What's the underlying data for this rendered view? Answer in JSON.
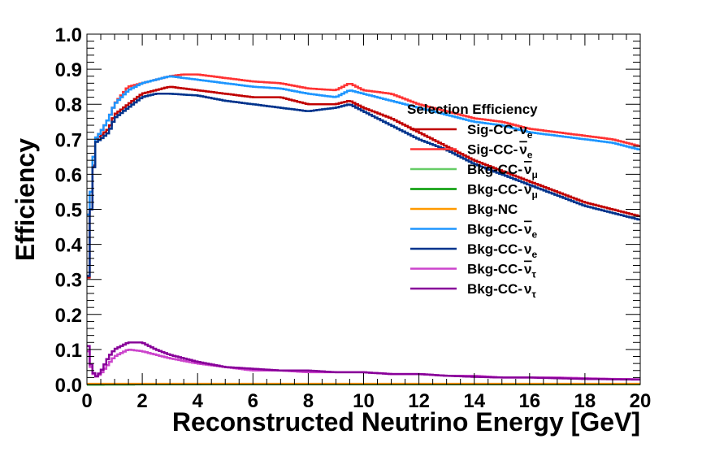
{
  "chart_data": {
    "type": "line",
    "title": "",
    "xlabel": "Reconstructed Neutrino Energy [GeV]",
    "ylabel": "Efficiency",
    "xlim": [
      0,
      20
    ],
    "ylim": [
      0,
      1.0
    ],
    "grid": false,
    "legend_title": "Selection Efficiency",
    "legend_position": "center-right",
    "x_ticks": [
      "0",
      "2",
      "4",
      "6",
      "8",
      "10",
      "12",
      "14",
      "16",
      "18",
      "20"
    ],
    "y_ticks": [
      "0.0",
      "0.1",
      "0.2",
      "0.3",
      "0.4",
      "0.5",
      "0.6",
      "0.7",
      "0.8",
      "0.9",
      "1.0"
    ],
    "series": [
      {
        "name": "Sig-CC-νe",
        "label": "Sig-CC-",
        "bar": false,
        "sub": "e",
        "color": "#c00000",
        "points": [
          [
            0,
            0.16
          ],
          [
            0.1,
            0.45
          ],
          [
            0.2,
            0.55
          ],
          [
            0.3,
            0.7
          ],
          [
            0.5,
            0.71
          ],
          [
            0.8,
            0.73
          ],
          [
            1,
            0.77
          ],
          [
            1.5,
            0.8
          ],
          [
            2,
            0.83
          ],
          [
            2.5,
            0.84
          ],
          [
            3,
            0.85
          ],
          [
            4,
            0.84
          ],
          [
            5,
            0.83
          ],
          [
            6,
            0.82
          ],
          [
            7,
            0.82
          ],
          [
            8,
            0.8
          ],
          [
            9,
            0.8
          ],
          [
            9.5,
            0.81
          ],
          [
            10,
            0.79
          ],
          [
            11,
            0.76
          ],
          [
            12,
            0.72
          ],
          [
            13,
            0.68
          ],
          [
            14,
            0.64
          ],
          [
            15,
            0.61
          ],
          [
            16,
            0.58
          ],
          [
            17,
            0.55
          ],
          [
            18,
            0.52
          ],
          [
            19,
            0.5
          ],
          [
            20,
            0.48
          ]
        ]
      },
      {
        "name": "Sig-CC-νe bar",
        "label": "Sig-CC-",
        "bar": true,
        "sub": "e",
        "color": "#ff3333",
        "points": [
          [
            0,
            0.47
          ],
          [
            0.1,
            0.5
          ],
          [
            0.2,
            0.6
          ],
          [
            0.3,
            0.7
          ],
          [
            0.5,
            0.72
          ],
          [
            0.8,
            0.76
          ],
          [
            1,
            0.8
          ],
          [
            1.5,
            0.85
          ],
          [
            2,
            0.86
          ],
          [
            2.5,
            0.87
          ],
          [
            3,
            0.88
          ],
          [
            3.5,
            0.885
          ],
          [
            4,
            0.885
          ],
          [
            5,
            0.875
          ],
          [
            6,
            0.865
          ],
          [
            7,
            0.86
          ],
          [
            8,
            0.845
          ],
          [
            9,
            0.84
          ],
          [
            9.5,
            0.86
          ],
          [
            10,
            0.84
          ],
          [
            11,
            0.83
          ],
          [
            12,
            0.8
          ],
          [
            13,
            0.78
          ],
          [
            14,
            0.76
          ],
          [
            15,
            0.75
          ],
          [
            16,
            0.73
          ],
          [
            17,
            0.72
          ],
          [
            18,
            0.71
          ],
          [
            19,
            0.7
          ],
          [
            20,
            0.68
          ]
        ]
      },
      {
        "name": "Bkg-CC-νμ bar",
        "label": "Bkg-CC-",
        "bar": true,
        "sub": "μ",
        "color": "#66cc66",
        "points": [
          [
            0,
            0.0
          ],
          [
            5,
            0.001
          ],
          [
            10,
            0.001
          ],
          [
            15,
            0.001
          ],
          [
            20,
            0.001
          ]
        ]
      },
      {
        "name": "Bkg-CC-νμ",
        "label": "Bkg-CC-",
        "bar": false,
        "sub": "μ",
        "color": "#009900",
        "points": [
          [
            0,
            0.0
          ],
          [
            5,
            0.001
          ],
          [
            10,
            0.001
          ],
          [
            15,
            0.001
          ],
          [
            20,
            0.001
          ]
        ]
      },
      {
        "name": "Bkg-NC",
        "label": "Bkg-NC",
        "bar": false,
        "sub": "",
        "color": "#ff9900",
        "points": [
          [
            0,
            0.002
          ],
          [
            5,
            0.002
          ],
          [
            10,
            0.002
          ],
          [
            15,
            0.002
          ],
          [
            20,
            0.002
          ]
        ]
      },
      {
        "name": "Bkg-CC-νe bar",
        "label": "Bkg-CC-",
        "bar": true,
        "sub": "e",
        "color": "#1e96ff",
        "points": [
          [
            0,
            0.47
          ],
          [
            0.1,
            0.5
          ],
          [
            0.2,
            0.6
          ],
          [
            0.3,
            0.7
          ],
          [
            0.5,
            0.72
          ],
          [
            0.8,
            0.76
          ],
          [
            1,
            0.8
          ],
          [
            1.5,
            0.84
          ],
          [
            2,
            0.86
          ],
          [
            2.5,
            0.87
          ],
          [
            3,
            0.88
          ],
          [
            4,
            0.87
          ],
          [
            5,
            0.86
          ],
          [
            6,
            0.85
          ],
          [
            7,
            0.845
          ],
          [
            8,
            0.83
          ],
          [
            9,
            0.82
          ],
          [
            9.5,
            0.84
          ],
          [
            10,
            0.83
          ],
          [
            11,
            0.81
          ],
          [
            12,
            0.79
          ],
          [
            13,
            0.77
          ],
          [
            14,
            0.75
          ],
          [
            15,
            0.74
          ],
          [
            16,
            0.72
          ],
          [
            17,
            0.71
          ],
          [
            18,
            0.7
          ],
          [
            19,
            0.69
          ],
          [
            20,
            0.67
          ]
        ]
      },
      {
        "name": "Bkg-CC-νe",
        "label": "Bkg-CC-",
        "bar": false,
        "sub": "e",
        "color": "#00338c",
        "points": [
          [
            0,
            0.17
          ],
          [
            0.1,
            0.45
          ],
          [
            0.2,
            0.55
          ],
          [
            0.3,
            0.69
          ],
          [
            0.5,
            0.7
          ],
          [
            0.8,
            0.72
          ],
          [
            1,
            0.76
          ],
          [
            1.5,
            0.79
          ],
          [
            2,
            0.82
          ],
          [
            2.5,
            0.83
          ],
          [
            3,
            0.83
          ],
          [
            4,
            0.825
          ],
          [
            5,
            0.81
          ],
          [
            6,
            0.8
          ],
          [
            7,
            0.79
          ],
          [
            8,
            0.78
          ],
          [
            9,
            0.79
          ],
          [
            9.5,
            0.8
          ],
          [
            10,
            0.78
          ],
          [
            11,
            0.74
          ],
          [
            12,
            0.7
          ],
          [
            13,
            0.67
          ],
          [
            14,
            0.63
          ],
          [
            15,
            0.6
          ],
          [
            16,
            0.57
          ],
          [
            17,
            0.54
          ],
          [
            18,
            0.51
          ],
          [
            19,
            0.49
          ],
          [
            20,
            0.47
          ]
        ]
      },
      {
        "name": "Bkg-CC-ντ bar",
        "label": "Bkg-CC-",
        "bar": true,
        "sub": "τ",
        "color": "#cc44cc",
        "points": [
          [
            0,
            0.13
          ],
          [
            0.1,
            0.06
          ],
          [
            0.3,
            0.02
          ],
          [
            0.5,
            0.03
          ],
          [
            0.8,
            0.06
          ],
          [
            1,
            0.08
          ],
          [
            1.5,
            0.1
          ],
          [
            2,
            0.095
          ],
          [
            2.5,
            0.085
          ],
          [
            3,
            0.075
          ],
          [
            4,
            0.06
          ],
          [
            5,
            0.05
          ],
          [
            6,
            0.04
          ],
          [
            7,
            0.04
          ],
          [
            8,
            0.035
          ],
          [
            9,
            0.035
          ],
          [
            10,
            0.035
          ],
          [
            11,
            0.03
          ],
          [
            12,
            0.03
          ],
          [
            13,
            0.025
          ],
          [
            14,
            0.025
          ],
          [
            15,
            0.02
          ],
          [
            16,
            0.02
          ],
          [
            17,
            0.02
          ],
          [
            18,
            0.018
          ],
          [
            19,
            0.016
          ],
          [
            20,
            0.015
          ]
        ]
      },
      {
        "name": "Bkg-CC-ντ",
        "label": "Bkg-CC-",
        "bar": false,
        "sub": "τ",
        "color": "#880099",
        "points": [
          [
            0,
            0.15
          ],
          [
            0.1,
            0.07
          ],
          [
            0.3,
            0.02
          ],
          [
            0.5,
            0.035
          ],
          [
            0.8,
            0.08
          ],
          [
            1,
            0.1
          ],
          [
            1.5,
            0.12
          ],
          [
            2,
            0.12
          ],
          [
            2.5,
            0.1
          ],
          [
            3,
            0.085
          ],
          [
            4,
            0.065
          ],
          [
            5,
            0.05
          ],
          [
            6,
            0.045
          ],
          [
            7,
            0.04
          ],
          [
            8,
            0.04
          ],
          [
            9,
            0.035
          ],
          [
            10,
            0.035
          ],
          [
            11,
            0.03
          ],
          [
            12,
            0.03
          ],
          [
            13,
            0.025
          ],
          [
            14,
            0.022
          ],
          [
            15,
            0.02
          ],
          [
            16,
            0.02
          ],
          [
            17,
            0.018
          ],
          [
            18,
            0.016
          ],
          [
            19,
            0.015
          ],
          [
            20,
            0.014
          ]
        ]
      }
    ]
  }
}
